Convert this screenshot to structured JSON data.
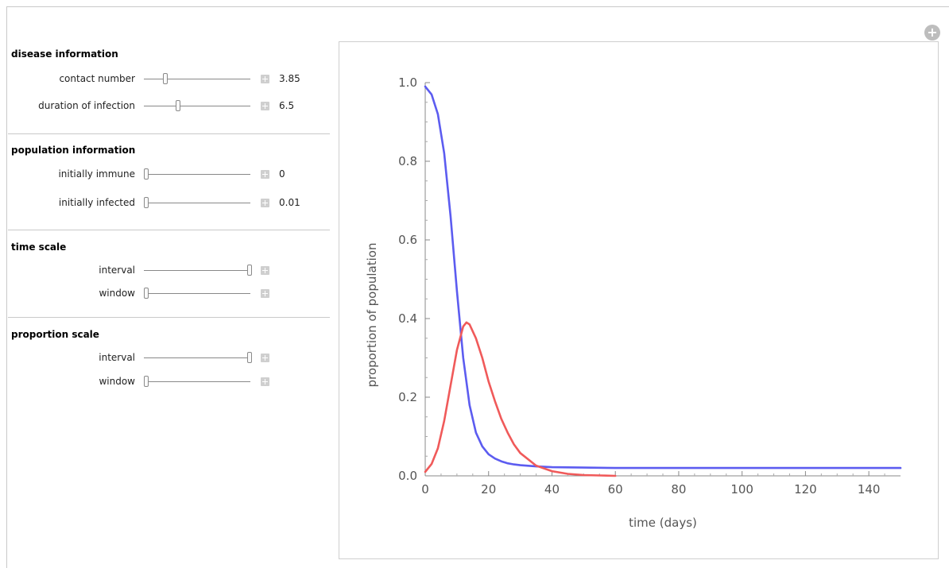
{
  "sections": {
    "disease": {
      "title": "disease information"
    },
    "population": {
      "title": "population information"
    },
    "time": {
      "title": "time scale"
    },
    "proportion": {
      "title": "proportion scale"
    }
  },
  "controls": {
    "contact_number": {
      "label": "contact number",
      "value": "3.85"
    },
    "duration": {
      "label": "duration of infection",
      "value": "6.5"
    },
    "initially_immune": {
      "label": "initially immune",
      "value": "0"
    },
    "initially_infected": {
      "label": "initially infected",
      "value": "0.01"
    },
    "time_interval": {
      "label": "interval"
    },
    "time_window": {
      "label": "window"
    },
    "prop_interval": {
      "label": "interval"
    },
    "prop_window": {
      "label": "window"
    }
  },
  "icons": {
    "corner": "plus-circle-icon",
    "control_plus": "plus-icon"
  },
  "colors": {
    "susceptible": "#5c5cf0",
    "infected": "#f05a5a"
  },
  "chart_data": {
    "type": "line",
    "xlabel": "time (days)",
    "ylabel": "proportion of population",
    "xlim": [
      0,
      150
    ],
    "ylim": [
      0,
      1.0
    ],
    "xticks": [
      0,
      20,
      40,
      60,
      80,
      100,
      120,
      140
    ],
    "yticks": [
      0.0,
      0.2,
      0.4,
      0.6,
      0.8,
      1.0
    ],
    "series": [
      {
        "color": "#5c5cf0",
        "x": [
          0,
          2,
          4,
          6,
          8,
          10,
          12,
          14,
          16,
          18,
          20,
          22,
          24,
          26,
          28,
          30,
          35,
          40,
          50,
          60,
          80,
          100,
          120,
          150
        ],
        "y": [
          0.99,
          0.97,
          0.92,
          0.82,
          0.66,
          0.47,
          0.3,
          0.18,
          0.11,
          0.075,
          0.055,
          0.044,
          0.037,
          0.032,
          0.029,
          0.027,
          0.024,
          0.022,
          0.021,
          0.02,
          0.02,
          0.02,
          0.02,
          0.02
        ]
      },
      {
        "color": "#f05a5a",
        "x": [
          0,
          2,
          4,
          6,
          8,
          10,
          12,
          13,
          14,
          16,
          18,
          20,
          22,
          24,
          26,
          28,
          30,
          35,
          40,
          45,
          50,
          55,
          60
        ],
        "y": [
          0.01,
          0.03,
          0.07,
          0.14,
          0.23,
          0.32,
          0.38,
          0.39,
          0.385,
          0.35,
          0.3,
          0.24,
          0.19,
          0.145,
          0.11,
          0.08,
          0.058,
          0.026,
          0.012,
          0.005,
          0.002,
          0.001,
          0.0
        ]
      }
    ]
  }
}
